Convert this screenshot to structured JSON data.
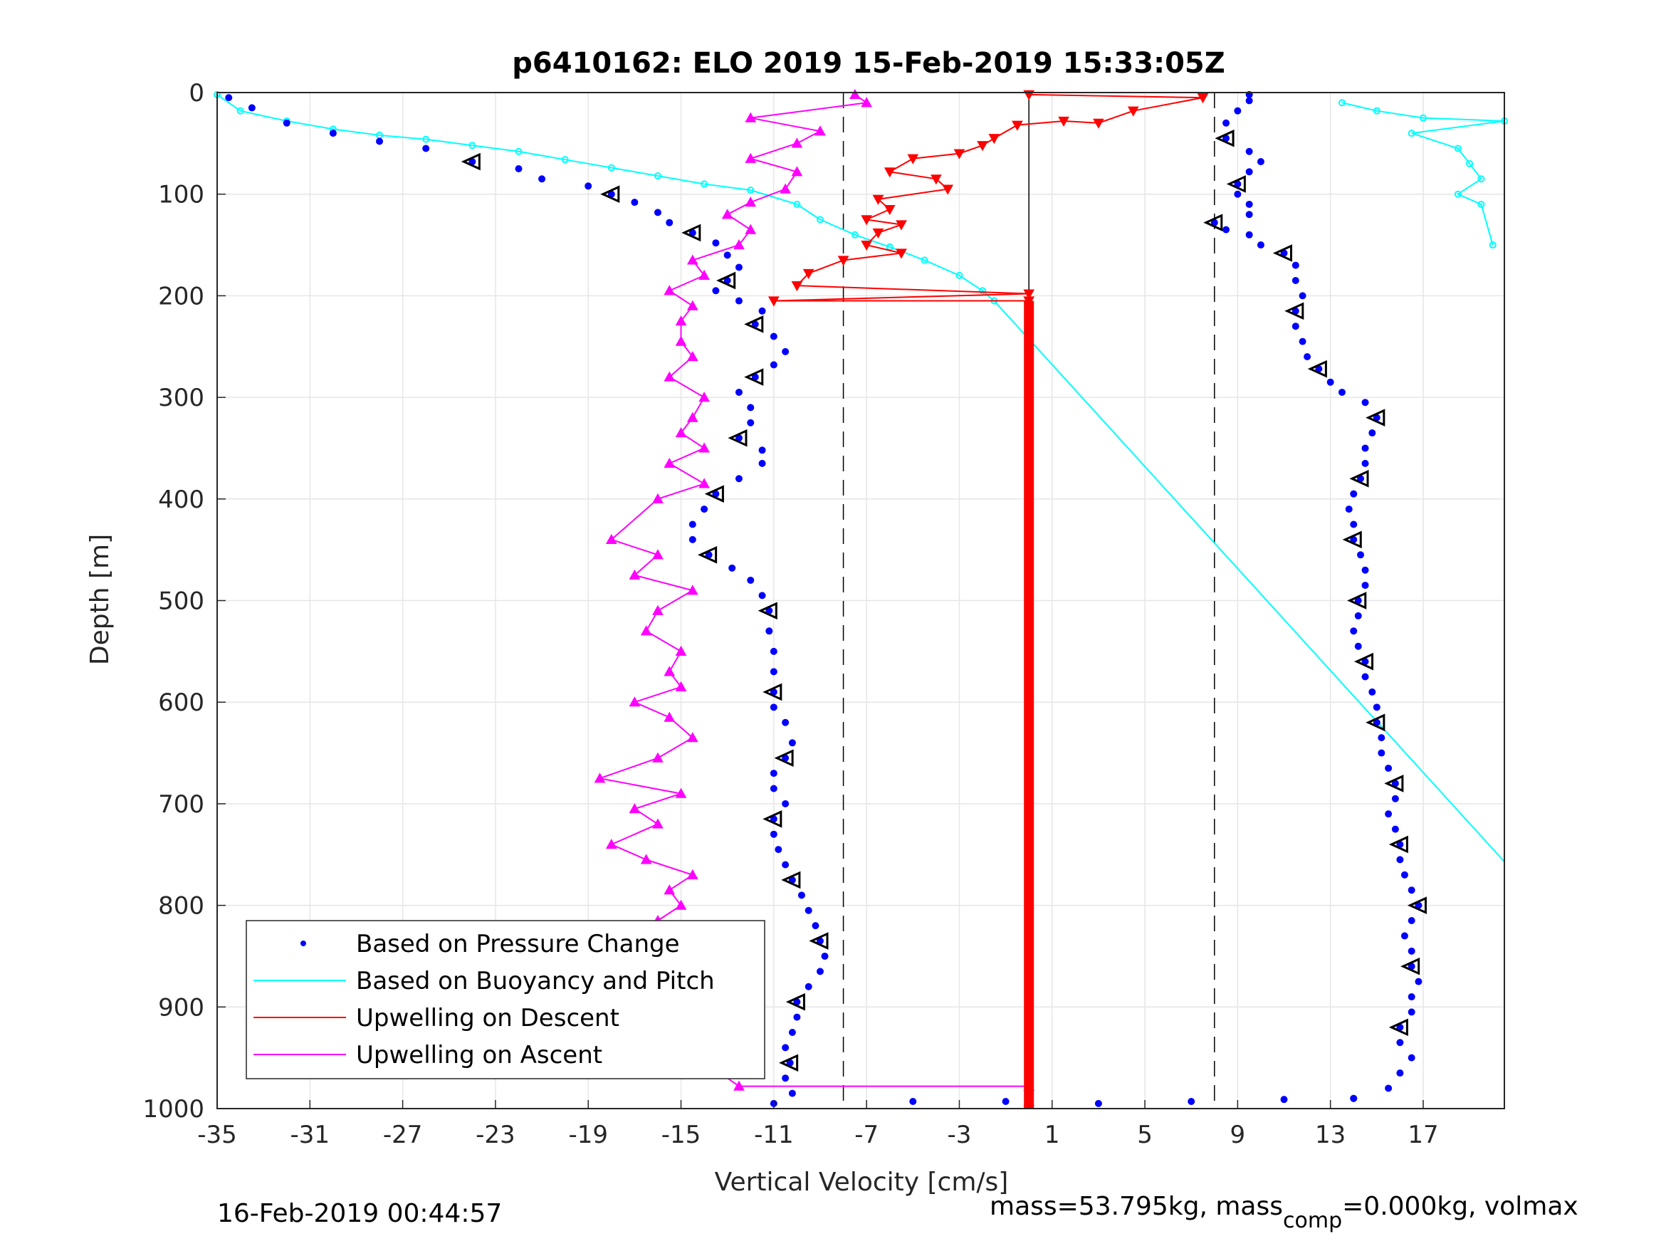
{
  "chart_data": {
    "type": "scatter",
    "title": "p6410162: ELO 2019 15-Feb-2019 15:33:05Z",
    "xlabel": "Vertical Velocity [cm/s]",
    "ylabel": "Depth [m]",
    "xlim": [
      -35,
      20.5
    ],
    "ylim": [
      1000,
      0
    ],
    "y_reversed": true,
    "grid": true,
    "legend_position": "bottom-left",
    "x_ticks": [
      -35,
      -31,
      -27,
      -23,
      -19,
      -15,
      -11,
      -7,
      -3,
      1,
      5,
      9,
      13,
      17
    ],
    "x_tick_labels": [
      "-35",
      "-31",
      "-27",
      "-23",
      "-19",
      "-15",
      "-11",
      "-7",
      "-3",
      "1",
      "5",
      "9",
      "13",
      "17"
    ],
    "y_ticks": [
      0,
      100,
      200,
      300,
      400,
      500,
      600,
      700,
      800,
      900,
      1000
    ],
    "y_tick_labels": [
      "0",
      "100",
      "200",
      "300",
      "400",
      "500",
      "600",
      "700",
      "800",
      "900",
      "1000"
    ],
    "reference_lines": {
      "solid_x": 0,
      "dashed_x": [
        -8,
        8
      ]
    },
    "series": [
      {
        "name": "Based on Pressure Change",
        "color": "#0000ff",
        "marker": "dot",
        "descent": [
          [
            -34.5,
            5
          ],
          [
            -33.5,
            15
          ],
          [
            -32,
            30
          ],
          [
            -30,
            40
          ],
          [
            -28,
            48
          ],
          [
            -26,
            55
          ],
          [
            -24,
            68
          ],
          [
            -22,
            75
          ],
          [
            -21,
            85
          ],
          [
            -19,
            92
          ],
          [
            -18,
            100
          ],
          [
            -17,
            108
          ],
          [
            -16,
            118
          ],
          [
            -15.5,
            128
          ],
          [
            -14.5,
            138
          ],
          [
            -13.5,
            148
          ],
          [
            -13,
            160
          ],
          [
            -12.5,
            172
          ],
          [
            -13,
            185
          ],
          [
            -13.5,
            195
          ],
          [
            -12.5,
            205
          ],
          [
            -11.5,
            215
          ],
          [
            -11.8,
            228
          ],
          [
            -11,
            240
          ],
          [
            -10.5,
            255
          ],
          [
            -11,
            268
          ],
          [
            -11.8,
            280
          ],
          [
            -12.5,
            295
          ],
          [
            -12,
            310
          ],
          [
            -12,
            325
          ],
          [
            -12.5,
            340
          ],
          [
            -11.5,
            352
          ],
          [
            -11.5,
            365
          ],
          [
            -12.5,
            380
          ],
          [
            -13.5,
            395
          ],
          [
            -14,
            410
          ],
          [
            -14.5,
            425
          ],
          [
            -14.5,
            440
          ],
          [
            -13.8,
            455
          ],
          [
            -12.8,
            468
          ],
          [
            -12,
            480
          ],
          [
            -11.5,
            495
          ],
          [
            -11.2,
            510
          ],
          [
            -11.2,
            530
          ],
          [
            -11,
            550
          ],
          [
            -11,
            570
          ],
          [
            -11,
            590
          ],
          [
            -11,
            605
          ],
          [
            -10.5,
            620
          ],
          [
            -10.2,
            640
          ],
          [
            -10.5,
            655
          ],
          [
            -11,
            670
          ],
          [
            -11,
            685
          ],
          [
            -10.5,
            700
          ],
          [
            -11,
            715
          ],
          [
            -11,
            730
          ],
          [
            -10.8,
            745
          ],
          [
            -10.5,
            760
          ],
          [
            -10.2,
            775
          ],
          [
            -9.8,
            790
          ],
          [
            -9.5,
            805
          ],
          [
            -9.2,
            820
          ],
          [
            -9,
            835
          ],
          [
            -8.8,
            850
          ],
          [
            -9,
            865
          ],
          [
            -9.5,
            880
          ],
          [
            -10,
            895
          ],
          [
            -10,
            910
          ],
          [
            -10.2,
            925
          ],
          [
            -10.5,
            940
          ],
          [
            -10.3,
            955
          ],
          [
            -10.5,
            970
          ],
          [
            -10.2,
            985
          ],
          [
            -11,
            995
          ],
          [
            -5,
            993
          ],
          [
            -1,
            993
          ],
          [
            3,
            995
          ],
          [
            7,
            993
          ],
          [
            11,
            991
          ],
          [
            14,
            990
          ]
        ],
        "ascent": [
          [
            14,
            990
          ],
          [
            15.5,
            980
          ],
          [
            16,
            965
          ],
          [
            16.5,
            950
          ],
          [
            16,
            935
          ],
          [
            16,
            920
          ],
          [
            16.5,
            905
          ],
          [
            16.5,
            890
          ],
          [
            16.8,
            875
          ],
          [
            16.5,
            860
          ],
          [
            16.5,
            845
          ],
          [
            16.2,
            830
          ],
          [
            16.5,
            815
          ],
          [
            16.8,
            800
          ],
          [
            16.5,
            785
          ],
          [
            16.2,
            770
          ],
          [
            16,
            755
          ],
          [
            16,
            740
          ],
          [
            15.8,
            725
          ],
          [
            15.5,
            710
          ],
          [
            15.8,
            695
          ],
          [
            15.8,
            680
          ],
          [
            15.5,
            665
          ],
          [
            15.2,
            650
          ],
          [
            15.2,
            635
          ],
          [
            15,
            620
          ],
          [
            15,
            605
          ],
          [
            14.8,
            590
          ],
          [
            14.5,
            575
          ],
          [
            14.5,
            560
          ],
          [
            14.2,
            545
          ],
          [
            14,
            530
          ],
          [
            14.2,
            515
          ],
          [
            14.2,
            500
          ],
          [
            14.5,
            485
          ],
          [
            14.5,
            470
          ],
          [
            14.3,
            455
          ],
          [
            14,
            440
          ],
          [
            14,
            425
          ],
          [
            13.8,
            410
          ],
          [
            14,
            395
          ],
          [
            14.3,
            380
          ],
          [
            14.5,
            365
          ],
          [
            14.5,
            350
          ],
          [
            14.8,
            335
          ],
          [
            15,
            320
          ],
          [
            14.5,
            305
          ],
          [
            13.5,
            295
          ],
          [
            13,
            285
          ],
          [
            12.5,
            272
          ],
          [
            12,
            260
          ],
          [
            11.8,
            245
          ],
          [
            11.5,
            230
          ],
          [
            11.5,
            215
          ],
          [
            11.8,
            200
          ],
          [
            11.5,
            185
          ],
          [
            11.5,
            170
          ],
          [
            11,
            158
          ],
          [
            10,
            150
          ],
          [
            9.5,
            140
          ],
          [
            8.5,
            135
          ],
          [
            8,
            128
          ],
          [
            9.5,
            120
          ],
          [
            9.5,
            110
          ],
          [
            9,
            100
          ],
          [
            9,
            90
          ],
          [
            9.5,
            78
          ],
          [
            10,
            68
          ],
          [
            9.5,
            58
          ],
          [
            8.5,
            45
          ],
          [
            8.5,
            30
          ],
          [
            9,
            18
          ],
          [
            9.5,
            8
          ],
          [
            9.5,
            2
          ]
        ]
      },
      {
        "name": "Based on Buoyancy and Pitch",
        "color": "#00ffff",
        "marker": "circle",
        "descent": [
          [
            -35,
            2
          ],
          [
            -34,
            18
          ],
          [
            -32,
            28
          ],
          [
            -30,
            36
          ],
          [
            -28,
            42
          ],
          [
            -26,
            46
          ],
          [
            -24,
            52
          ],
          [
            -22,
            58
          ],
          [
            -20,
            66
          ],
          [
            -18,
            74
          ],
          [
            -16,
            82
          ],
          [
            -14,
            90
          ],
          [
            -12,
            96
          ],
          [
            -10,
            110
          ],
          [
            -9,
            125
          ],
          [
            -7.5,
            140
          ],
          [
            -6,
            152
          ],
          [
            -4.5,
            165
          ],
          [
            -3,
            180
          ],
          [
            -2,
            195
          ],
          [
            -1.5,
            205
          ],
          [
            20.5,
            757
          ]
        ],
        "ascent": [
          [
            13.5,
            10
          ],
          [
            15,
            18
          ],
          [
            17,
            25
          ],
          [
            20.5,
            28
          ],
          [
            16.5,
            40
          ],
          [
            18.5,
            55
          ],
          [
            19,
            70
          ],
          [
            19.5,
            85
          ],
          [
            18.5,
            100
          ],
          [
            19.5,
            110
          ],
          [
            20,
            150
          ]
        ]
      },
      {
        "name": "Upwelling on Descent",
        "color": "#ff0000",
        "marker": "triangle-down",
        "points": [
          [
            0,
            2
          ],
          [
            7.5,
            5
          ],
          [
            4.5,
            18
          ],
          [
            3,
            30
          ],
          [
            1.5,
            28
          ],
          [
            -0.5,
            32
          ],
          [
            -1.5,
            45
          ],
          [
            -2,
            52
          ],
          [
            -3,
            60
          ],
          [
            -5,
            65
          ],
          [
            -6,
            78
          ],
          [
            -4,
            85
          ],
          [
            -3.5,
            95
          ],
          [
            -6.5,
            105
          ],
          [
            -6,
            115
          ],
          [
            -7,
            125
          ],
          [
            -5.5,
            130
          ],
          [
            -6.5,
            138
          ],
          [
            -7,
            150
          ],
          [
            -5.5,
            158
          ],
          [
            -8,
            165
          ],
          [
            -9.5,
            178
          ],
          [
            -10,
            190
          ],
          [
            0,
            198
          ],
          [
            -11,
            205
          ],
          [
            0,
            205
          ],
          [
            0,
            1000
          ]
        ]
      },
      {
        "name": "Upwelling on Ascent",
        "color": "#ff00ff",
        "marker": "triangle-up",
        "points": [
          [
            -7.5,
            2
          ],
          [
            -7,
            10
          ],
          [
            -12,
            25
          ],
          [
            -9,
            38
          ],
          [
            -10,
            50
          ],
          [
            -12,
            65
          ],
          [
            -10,
            78
          ],
          [
            -10.5,
            95
          ],
          [
            -12,
            108
          ],
          [
            -13,
            120
          ],
          [
            -12,
            135
          ],
          [
            -12.5,
            150
          ],
          [
            -14.5,
            165
          ],
          [
            -14,
            180
          ],
          [
            -15.5,
            195
          ],
          [
            -14.5,
            210
          ],
          [
            -15,
            225
          ],
          [
            -15,
            245
          ],
          [
            -14.5,
            260
          ],
          [
            -15.5,
            280
          ],
          [
            -14,
            300
          ],
          [
            -14.5,
            320
          ],
          [
            -15,
            335
          ],
          [
            -14,
            350
          ],
          [
            -15.5,
            365
          ],
          [
            -14,
            385
          ],
          [
            -16,
            400
          ],
          [
            -18,
            440
          ],
          [
            -16,
            455
          ],
          [
            -17,
            475
          ],
          [
            -14.5,
            490
          ],
          [
            -16,
            510
          ],
          [
            -16.5,
            530
          ],
          [
            -15,
            550
          ],
          [
            -15.5,
            570
          ],
          [
            -15,
            585
          ],
          [
            -17,
            600
          ],
          [
            -15.5,
            615
          ],
          [
            -14.5,
            635
          ],
          [
            -16,
            655
          ],
          [
            -18.5,
            675
          ],
          [
            -15,
            690
          ],
          [
            -17,
            705
          ],
          [
            -16,
            720
          ],
          [
            -18,
            740
          ],
          [
            -16.5,
            755
          ],
          [
            -14.5,
            770
          ],
          [
            -15.5,
            785
          ],
          [
            -15,
            800
          ],
          [
            -16,
            815
          ],
          [
            -14,
            830
          ],
          [
            -15,
            845
          ],
          [
            -14.5,
            860
          ],
          [
            -15.5,
            875
          ],
          [
            -14.5,
            890
          ],
          [
            -14.5,
            905
          ],
          [
            -15,
            920
          ],
          [
            -14.5,
            935
          ],
          [
            -15,
            950
          ],
          [
            -13.5,
            962
          ],
          [
            -12.5,
            978
          ],
          [
            0,
            978
          ],
          [
            0,
            993
          ]
        ]
      }
    ],
    "legend": [
      "Based on Pressure Change",
      "Based on Buoyancy and Pitch",
      "Upwelling on Descent",
      "Upwelling on Ascent"
    ],
    "timestamp": "16-Feb-2019 00:44:57",
    "mass_note_main": "mass=53.795kg, mass",
    "mass_note_sub": "comp",
    "mass_note_tail": "=0.000kg, volmax"
  }
}
